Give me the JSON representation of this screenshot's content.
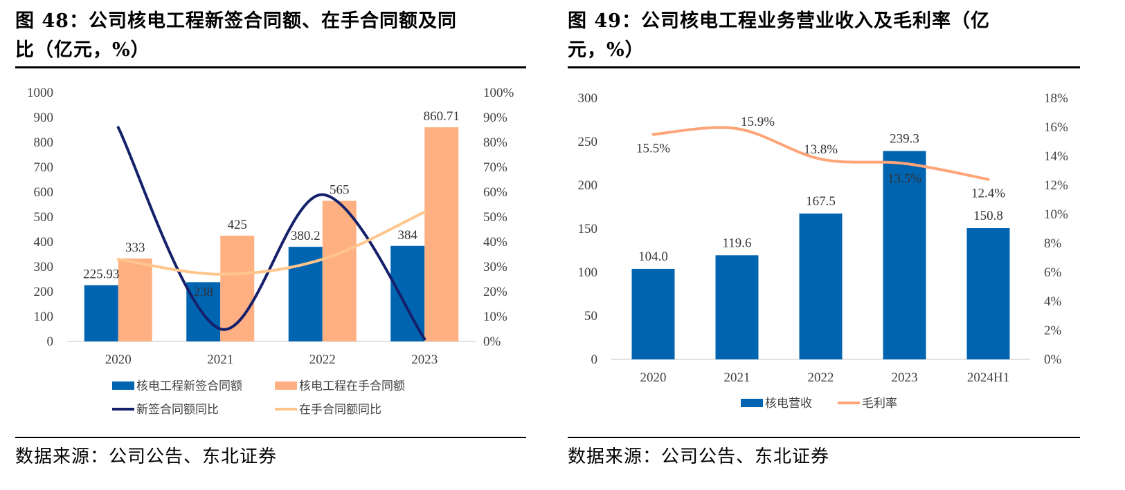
{
  "figures": [
    {
      "title": "图 48：公司核电工程新签合同额、在手合同额及同比（亿元，%）",
      "title_line1": "图 48：公司核电工程新签合同额、在手合同额及同",
      "title_line2": "比（亿元，%）",
      "source": "数据来源：公司公告、东北证券"
    },
    {
      "title": "图 49：公司核电工程业务营业收入及毛利率（亿元，%）",
      "title_line1": "图 49：公司核电工程业务营业收入及毛利率（亿",
      "title_line2": "元，%）",
      "source": "数据来源：公司公告、东北证券"
    }
  ],
  "colors": {
    "blue_bar": "#0064B1",
    "orange_bar": "#FFB083",
    "navy_line": "#14206A",
    "light_orange_line": "#FFC58C",
    "margin_line": "#FFA478",
    "axis": "#D9D9D9"
  },
  "chart_data": [
    {
      "type": "bar",
      "title": "图 48：公司核电工程新签合同额、在手合同额及同比（亿元，%）",
      "categories": [
        "2020",
        "2021",
        "2022",
        "2023"
      ],
      "ylim": [
        0,
        1000
      ],
      "yticks": [
        "0",
        "100",
        "200",
        "300",
        "400",
        "500",
        "600",
        "700",
        "800",
        "900",
        "1000"
      ],
      "ylim_right": [
        0,
        100
      ],
      "yticks_right": [
        "0%",
        "10%",
        "20%",
        "30%",
        "40%",
        "50%",
        "60%",
        "70%",
        "80%",
        "90%",
        "100%"
      ],
      "grid": false,
      "legend_position": "bottom",
      "series": [
        {
          "name": "核电工程新签合同额",
          "kind": "bar",
          "axis": "left",
          "values": [
            225.93,
            238,
            380.2,
            384
          ],
          "labels": [
            "225.93",
            "238",
            "380.2",
            "384"
          ]
        },
        {
          "name": "核电工程在手合同额",
          "kind": "bar",
          "axis": "left",
          "values": [
            333,
            425,
            565,
            860.71
          ],
          "labels": [
            "333",
            "425",
            "565",
            "860.71"
          ]
        },
        {
          "name": "新签合同额同比",
          "kind": "line",
          "axis": "right",
          "values": [
            86,
            5,
            59,
            1
          ]
        },
        {
          "name": "在手合同额同比",
          "kind": "line",
          "axis": "right",
          "values": [
            33,
            27,
            33,
            52
          ]
        }
      ]
    },
    {
      "type": "bar",
      "title": "图 49：公司核电工程业务营业收入及毛利率（亿元，%）",
      "categories": [
        "2020",
        "2021",
        "2022",
        "2023",
        "2024H1"
      ],
      "ylim": [
        0,
        300
      ],
      "yticks": [
        "0",
        "50",
        "100",
        "150",
        "200",
        "250",
        "300"
      ],
      "ylim_right": [
        0,
        18
      ],
      "yticks_right": [
        "0%",
        "2%",
        "4%",
        "6%",
        "8%",
        "10%",
        "12%",
        "14%",
        "16%",
        "18%"
      ],
      "grid": false,
      "legend_position": "bottom",
      "series": [
        {
          "name": "核电营收",
          "kind": "bar",
          "axis": "left",
          "values": [
            104.0,
            119.6,
            167.5,
            239.3,
            150.8
          ],
          "labels": [
            "104.0",
            "119.6",
            "167.5",
            "239.3",
            "150.8"
          ]
        },
        {
          "name": "毛利率",
          "kind": "line",
          "axis": "right",
          "values": [
            15.5,
            15.9,
            13.8,
            13.5,
            12.4
          ],
          "labels": [
            "15.5%",
            "15.9%",
            "13.8%",
            "13.5%",
            "12.4%"
          ]
        }
      ]
    }
  ]
}
